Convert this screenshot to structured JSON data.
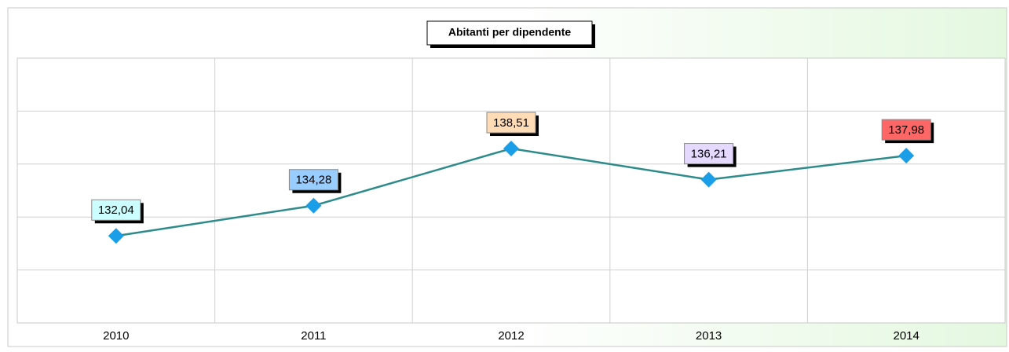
{
  "chart_data": {
    "type": "line",
    "title": "Abitanti per dipendente",
    "categories": [
      "2010",
      "2011",
      "2012",
      "2013",
      "2014"
    ],
    "series": [
      {
        "name": "Abitanti per dipendente",
        "color": "#2e8b8b",
        "marker_color": "#1a9ee8",
        "values": [
          132.04,
          134.28,
          138.51,
          136.21,
          137.98
        ],
        "value_labels": [
          "132,04",
          "134,28",
          "138,51",
          "136,21",
          "137,98"
        ],
        "label_colors": [
          "#ccffff",
          "#99ccff",
          "#ffdbb6",
          "#e6d9ff",
          "#ff6666"
        ]
      }
    ],
    "ylim": [
      125.6,
      145.2
    ],
    "yticks": [
      129.52,
      133.44,
      137.36,
      141.28
    ],
    "grid": true
  }
}
